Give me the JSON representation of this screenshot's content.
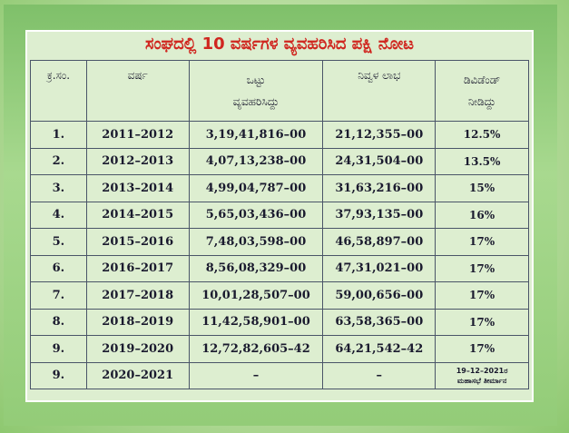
{
  "title": "ಸಂಘದಲ್ಲಿ 10 ವರ್ಷಗಳ ವ್ಯವಹರಿಸಿದ ಪಕ್ಷಿ ನೋಟ",
  "headers": {
    "sno": "ಕ್ರ.ಸಂ.",
    "year": "ವರ್ಷ",
    "turnover_line1": "ಒಟ್ಟು",
    "turnover_line2": "ವ್ಯವಹರಿಸಿದ್ದು",
    "net_profit": "ನಿವ್ವಳ ಲಾಭ",
    "dividend_line1": "ಡಿವಿಡೆಂಡ್",
    "dividend_line2": "ನೀಡಿದ್ದು"
  },
  "rows": [
    {
      "sno": "1.",
      "year": "2011–2012",
      "turnover": "3,19,41,816–00",
      "profit": "21,12,355–00",
      "dividend": "12.5%"
    },
    {
      "sno": "2.",
      "year": "2012–2013",
      "turnover": "4,07,13,238–00",
      "profit": "24,31,504–00",
      "dividend": "13.5%"
    },
    {
      "sno": "3.",
      "year": "2013–2014",
      "turnover": "4,99,04,787–00",
      "profit": "31,63,216–00",
      "dividend": "15%"
    },
    {
      "sno": "4.",
      "year": "2014–2015",
      "turnover": "5,65,03,436–00",
      "profit": "37,93,135–00",
      "dividend": "16%"
    },
    {
      "sno": "5.",
      "year": "2015–2016",
      "turnover": "7,48,03,598–00",
      "profit": "46,58,897–00",
      "dividend": "17%"
    },
    {
      "sno": "6.",
      "year": "2016–2017",
      "turnover": "8,56,08,329–00",
      "profit": "47,31,021–00",
      "dividend": "17%"
    },
    {
      "sno": "7.",
      "year": "2017–2018",
      "turnover": "10,01,28,507–00",
      "profit": "59,00,656–00",
      "dividend": "17%"
    },
    {
      "sno": "8.",
      "year": "2018–2019",
      "turnover": "11,42,58,901–00",
      "profit": "63,58,365–00",
      "dividend": "17%"
    },
    {
      "sno": "9.",
      "year": "2019–2020",
      "turnover": "12,72,82,605–42",
      "profit": "64,21,542–42",
      "dividend": "17%"
    },
    {
      "sno": "9.",
      "year": "2020–2021",
      "turnover": "–",
      "profit": "–",
      "dividend_note_line1": "19–12–2021ರ",
      "dividend_note_line2": "ಮಹಾಸಭೆ ತೀರ್ಮಾನ"
    }
  ],
  "colors": {
    "title": "#d0261f",
    "panel": "#ddeed0",
    "frame": "#93cc78"
  }
}
